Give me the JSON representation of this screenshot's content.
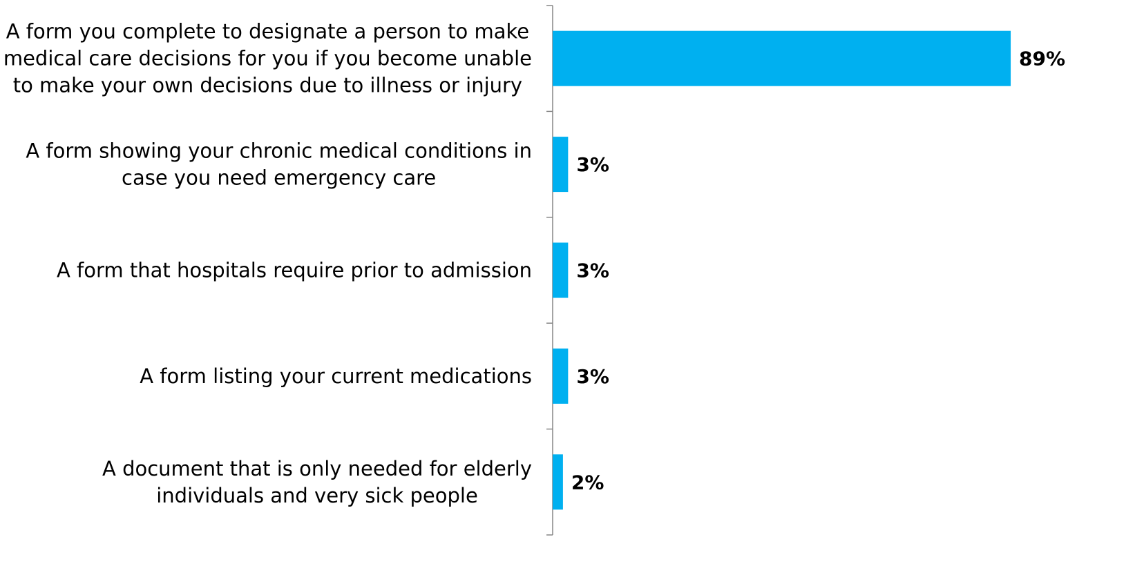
{
  "chart_data": {
    "type": "bar",
    "orientation": "horizontal",
    "categories": [
      "A form you complete to designate a person to make medical care decisions for you if you become unable to make your own decisions due to illness or injury",
      "A form showing your chronic medical conditions in case you need emergency care",
      "A form that hospitals require prior to admission",
      "A form listing your current medications",
      "A document that is only needed for elderly individuals and very sick people"
    ],
    "category_lines": [
      [
        "A form you complete to designate a person to make",
        "medical care decisions for you if you become unable",
        "to make your own decisions due to illness or injury"
      ],
      [
        "A form showing your chronic medical conditions in",
        "case you need emergency care"
      ],
      [
        "A form that hospitals require prior to admission"
      ],
      [
        "A form listing your current medications"
      ],
      [
        "A document that is only needed for elderly",
        "individuals and very sick people"
      ]
    ],
    "values": [
      89,
      3,
      3,
      3,
      2
    ],
    "value_labels": [
      "89%",
      "3%",
      "3%",
      "3%",
      "2%"
    ],
    "xlim": [
      0,
      100
    ],
    "bar_color": "#00B0F0",
    "axis_color": "#868686",
    "grid": false,
    "legend": "none"
  }
}
